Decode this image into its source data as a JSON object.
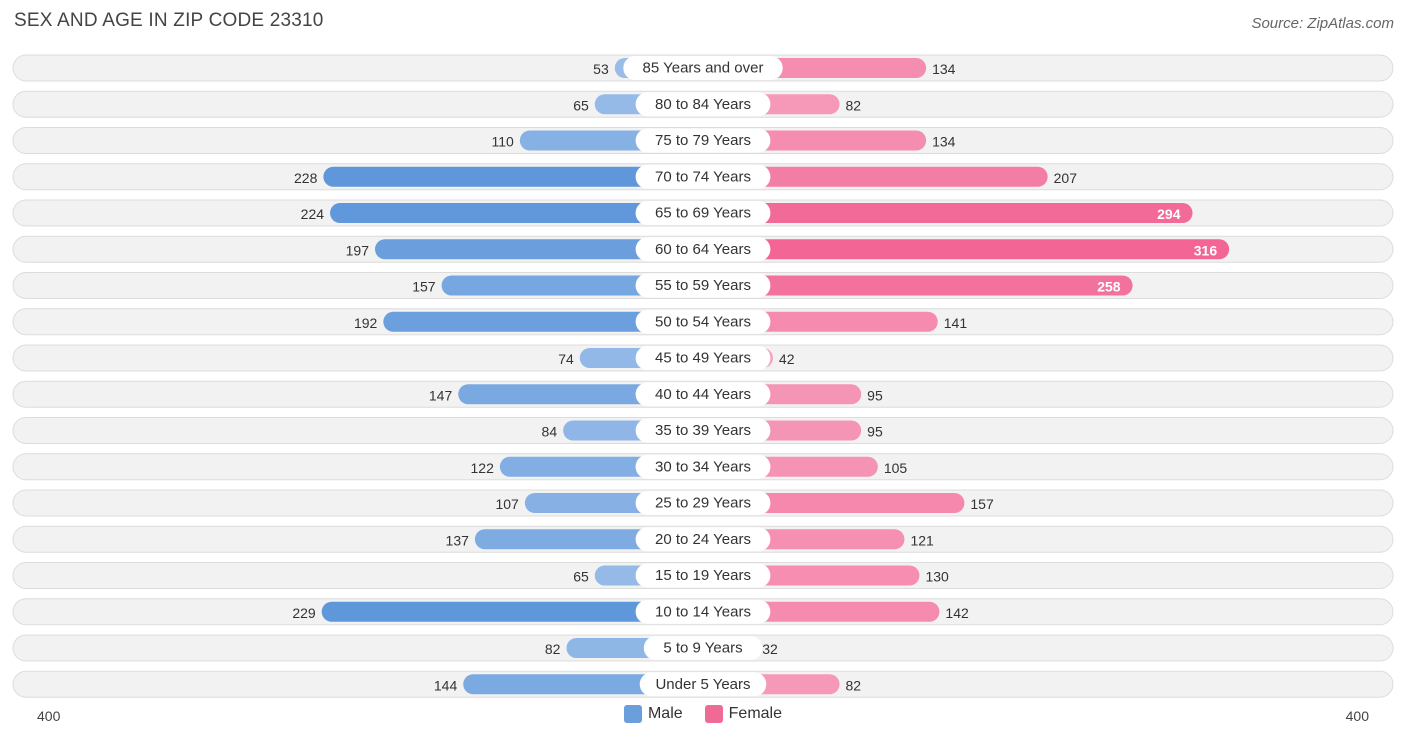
{
  "title": "SEX AND AGE IN ZIP CODE 23310",
  "source": "Source: ZipAtlas.com",
  "chart_data": {
    "type": "bar",
    "orientation": "horizontal-diverging",
    "categories": [
      "85 Years and over",
      "80 to 84 Years",
      "75 to 79 Years",
      "70 to 74 Years",
      "65 to 69 Years",
      "60 to 64 Years",
      "55 to 59 Years",
      "50 to 54 Years",
      "45 to 49 Years",
      "40 to 44 Years",
      "35 to 39 Years",
      "30 to 34 Years",
      "25 to 29 Years",
      "20 to 24 Years",
      "15 to 19 Years",
      "10 to 14 Years",
      "5 to 9 Years",
      "Under 5 Years"
    ],
    "series": [
      {
        "name": "Male",
        "color": "#6a9fdc",
        "values": [
          53,
          65,
          110,
          228,
          224,
          197,
          157,
          192,
          74,
          147,
          84,
          122,
          107,
          137,
          65,
          229,
          82,
          144
        ]
      },
      {
        "name": "Female",
        "color": "#f06a96",
        "values": [
          134,
          82,
          134,
          207,
          294,
          316,
          258,
          141,
          42,
          95,
          95,
          105,
          157,
          121,
          130,
          142,
          32,
          82
        ]
      }
    ],
    "xlim": [
      -400,
      400
    ],
    "axis_min_label": "400",
    "axis_max_label": "400",
    "legend_position": "bottom-center"
  }
}
